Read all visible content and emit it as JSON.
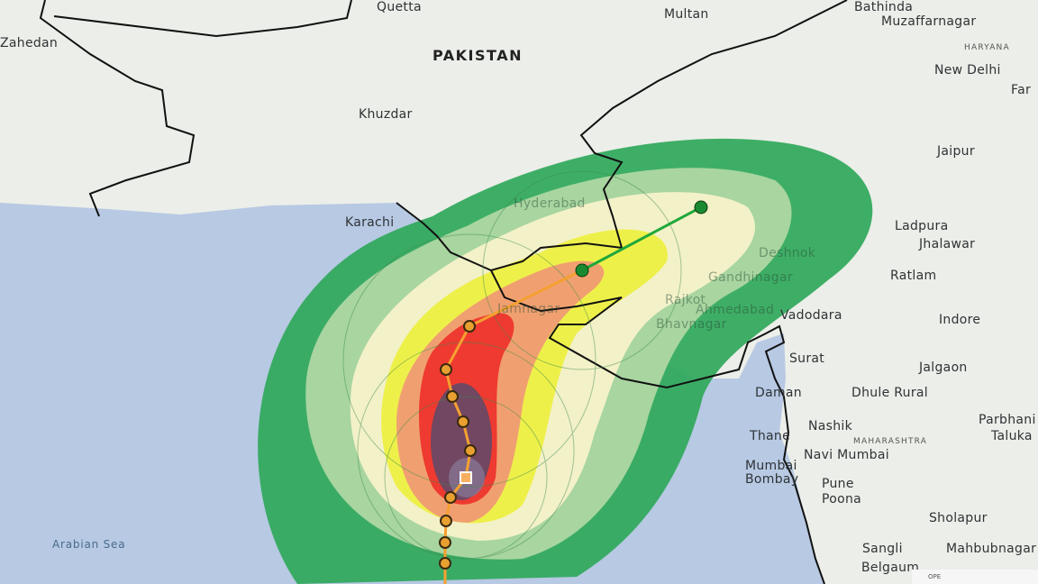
{
  "map": {
    "country_label": "PAKISTAN",
    "sea_label": "Arabian Sea",
    "state_labels": [
      "HARYANA",
      "MAHARASHTRA"
    ],
    "cities": [
      "Quetta",
      "Zahedan",
      "Multan",
      "Bathinda",
      "Muzaffarnagar",
      "New Delhi",
      "Far",
      "Khuzdar",
      "Jaipur",
      "Ladpura",
      "Jhalawar",
      "Ratlam",
      "Vadodara",
      "Indore",
      "Surat",
      "Jalgaon",
      "Daman",
      "Dhule Rural",
      "Parbhani",
      "Taluka",
      "Nashik",
      "Navi Mumbai",
      "Pune",
      "Poona",
      "Sholapur",
      "Sangli",
      "Mahbubnagar",
      "Belgaum",
      "Karachi",
      "Thane",
      "Mumbai",
      "Bombay"
    ],
    "faint_cities": [
      "Hyderabad",
      "Ahmedabad",
      "Gandhinagar",
      "Rajkot",
      "Bhavnagar",
      "Jamnagar",
      "Deshnok"
    ],
    "attribution": "OPE"
  },
  "storm_track": {
    "forecast_color": "#1fa83a",
    "past_color": "#f5a030",
    "points_count_legend": ""
  },
  "colors": {
    "sea": "#b7c9e3",
    "land": "#eceee9",
    "swath_outer": "#2fa85a",
    "swath_light": "#a8d5a0",
    "swath_cream": "#f3f1c8",
    "swath_yellow": "#eef04a",
    "swath_orange": "#f0a070",
    "swath_red": "#ee3a30",
    "swath_core": "#5a4a6a"
  }
}
